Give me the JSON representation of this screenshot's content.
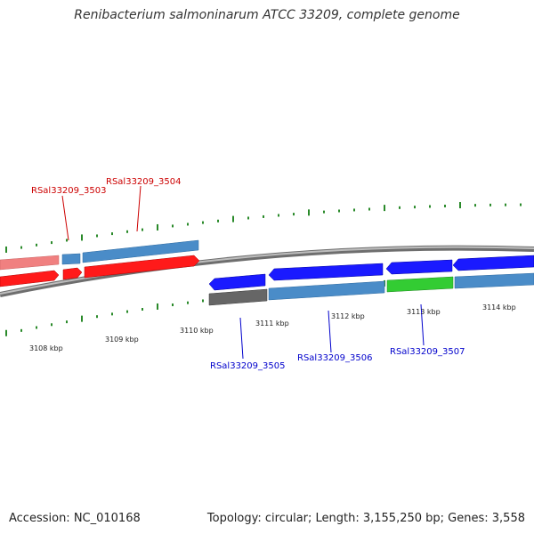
{
  "title": "Renibacterium salmoninarum ATCC 33209, complete genome",
  "footer": {
    "accession": "Accession: NC_010168",
    "topology": "Topology: circular; Length: 3,155,250 bp; Genes: 3,558"
  },
  "colors": {
    "backbone": "#8a8a8a",
    "cds_red": "#ff1a1a",
    "cds_pink": "#f08080",
    "cds_blue": "#1a1aff",
    "cds_steel": "#4a8cc8",
    "cds_gray": "#666666",
    "cds_green": "#33cc33",
    "tick_green": "#2a8a2a",
    "label_red": "#cc0000",
    "label_blue": "#0000cc"
  },
  "scale_labels": [
    "3108 kbp",
    "3109 kbp",
    "3110 kbp",
    "3111 kbp",
    "3112 kbp",
    "3113 kbp",
    "3114 kbp"
  ],
  "genes": [
    {
      "id": "rsal-3503",
      "label": "RSal33209_3503",
      "strand": "top"
    },
    {
      "id": "rsal-3504",
      "label": "RSal33209_3504",
      "strand": "top"
    },
    {
      "id": "rsal-3505",
      "label": "RSal33209_3505",
      "strand": "bottom"
    },
    {
      "id": "rsal-3506",
      "label": "RSal33209_3506",
      "strand": "bottom"
    },
    {
      "id": "rsal-3507",
      "label": "RSal33209_3507",
      "strand": "bottom"
    }
  ]
}
